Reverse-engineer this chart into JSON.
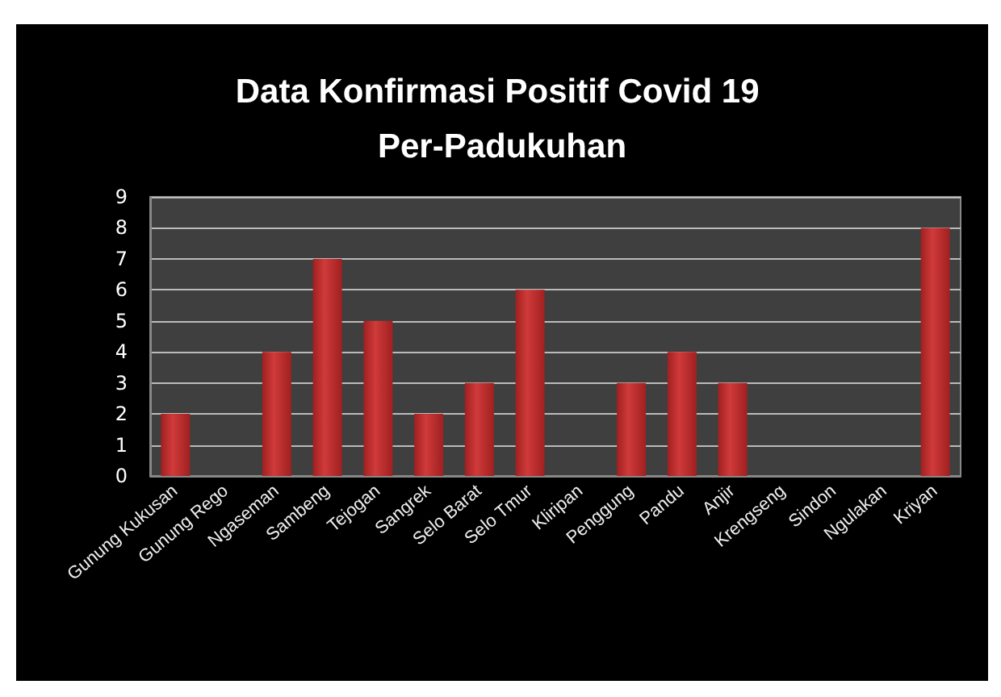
{
  "chart_data": {
    "type": "bar",
    "title": "Data Konfirmasi Positif Covid 19 Per-Padukuhan",
    "categories": [
      "Gunung Kukusan",
      "Gunung Rego",
      "Ngaseman",
      "Sambeng",
      "Tejogan",
      "Sangrek",
      "Selo Barat",
      "Selo Tmur",
      "Kliripan",
      "Penggung",
      "Pandu",
      "Anjir",
      "Krengseng",
      "Sindon",
      "Ngulakan",
      "Kriyan"
    ],
    "values": [
      2,
      0,
      4,
      7,
      5,
      2,
      3,
      6,
      0,
      3,
      4,
      3,
      0,
      0,
      0,
      8
    ],
    "color": "#d03a3a",
    "ylim": [
      0,
      9
    ],
    "yticks": [
      0,
      1,
      2,
      3,
      4,
      5,
      6,
      7,
      8,
      9
    ],
    "grid": "y"
  }
}
